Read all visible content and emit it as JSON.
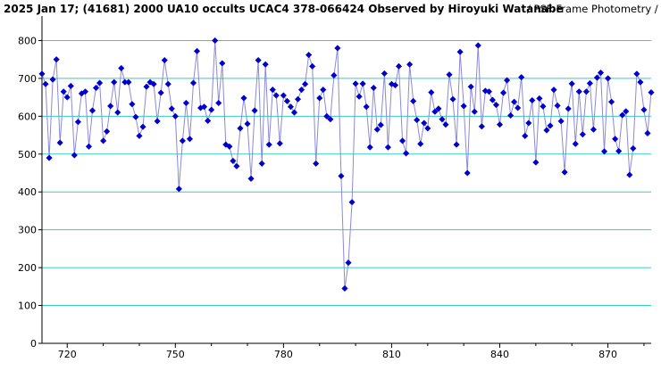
{
  "title": {
    "main": "2025 Jan 17; (41681) 2000 UA10 occults UCAC4 378-066424 Observed by Hiroyuki Watanabe",
    "method": "/ PSF-Frame Photometry /"
  },
  "colors": {
    "grid": "#33cccc",
    "line": "#8a8ad8",
    "marker": "#0000cc",
    "axis": "#000000"
  },
  "chart_data": {
    "type": "line",
    "xlabel": "",
    "ylabel": "",
    "xlim": [
      713,
      882
    ],
    "ylim": [
      0,
      860
    ],
    "x_ticks": [
      720,
      750,
      780,
      810,
      840,
      870
    ],
    "y_ticks": [
      0,
      100,
      200,
      300,
      400,
      500,
      600,
      700,
      800
    ],
    "grid": true,
    "x": [
      713,
      714,
      715,
      716,
      717,
      718,
      719,
      720,
      721,
      722,
      723,
      724,
      725,
      726,
      727,
      728,
      729,
      730,
      731,
      732,
      733,
      734,
      735,
      736,
      737,
      738,
      739,
      740,
      741,
      742,
      743,
      744,
      745,
      746,
      747,
      748,
      749,
      750,
      751,
      752,
      753,
      754,
      755,
      756,
      757,
      758,
      759,
      760,
      761,
      762,
      763,
      764,
      765,
      766,
      767,
      768,
      769,
      770,
      771,
      772,
      773,
      774,
      775,
      776,
      777,
      778,
      779,
      780,
      781,
      782,
      783,
      784,
      785,
      786,
      787,
      788,
      789,
      790,
      791,
      792,
      793,
      794,
      795,
      796,
      797,
      798,
      799,
      800,
      801,
      802,
      803,
      804,
      805,
      806,
      807,
      808,
      809,
      810,
      811,
      812,
      813,
      814,
      815,
      816,
      817,
      818,
      819,
      820,
      821,
      822,
      823,
      824,
      825,
      826,
      827,
      828,
      829,
      830,
      831,
      832,
      833,
      834,
      835,
      836,
      837,
      838,
      839,
      840,
      841,
      842,
      843,
      844,
      845,
      846,
      847,
      848,
      849,
      850,
      851,
      852,
      853,
      854,
      855,
      856,
      857,
      858,
      859,
      860,
      861,
      862,
      863,
      864,
      865,
      866,
      867,
      868,
      869,
      870,
      871,
      872,
      873,
      874,
      875,
      876,
      877,
      878,
      879,
      880,
      881,
      882
    ],
    "values": [
      712,
      685,
      490,
      697,
      750,
      530,
      665,
      650,
      680,
      497,
      585,
      660,
      665,
      520,
      615,
      675,
      688,
      535,
      560,
      627,
      690,
      610,
      727,
      690,
      690,
      632,
      598,
      548,
      572,
      678,
      690,
      685,
      587,
      662,
      748,
      685,
      620,
      600,
      408,
      535,
      635,
      540,
      688,
      772,
      622,
      625,
      588,
      617,
      800,
      635,
      740,
      525,
      520,
      482,
      468,
      568,
      648,
      580,
      435,
      615,
      748,
      475,
      737,
      525,
      670,
      655,
      528,
      655,
      640,
      625,
      610,
      645,
      670,
      685,
      762,
      732,
      475,
      648,
      670,
      600,
      592,
      708,
      780,
      442,
      145,
      213,
      373,
      686,
      652,
      686,
      625,
      518,
      675,
      565,
      577,
      713,
      518,
      685,
      682,
      732,
      535,
      502,
      737,
      640,
      590,
      527,
      582,
      568,
      663,
      612,
      620,
      592,
      578,
      710,
      645,
      525,
      770,
      627,
      450,
      678,
      612,
      787,
      573,
      667,
      665,
      643,
      630,
      578,
      662,
      695,
      602,
      638,
      622,
      703,
      548,
      582,
      642,
      478,
      647,
      626,
      563,
      575,
      670,
      628,
      587,
      452,
      620,
      686,
      527,
      665,
      552,
      665,
      687,
      565,
      702,
      715,
      507,
      700,
      638,
      540,
      508,
      603,
      613,
      445,
      515,
      712,
      690,
      617,
      555,
      663
    ]
  }
}
